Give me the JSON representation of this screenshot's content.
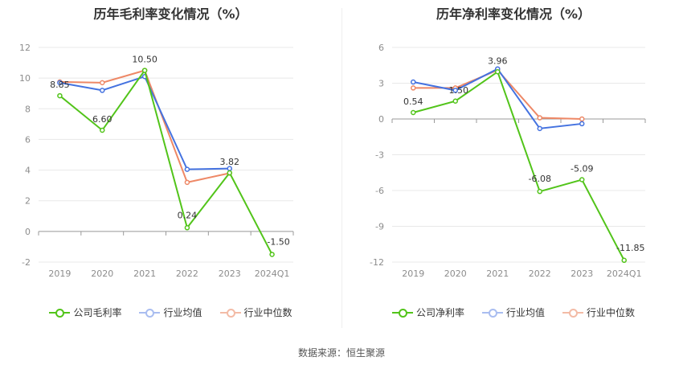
{
  "source_label": "数据来源：恒生聚源",
  "colors": {
    "company": "#52c41a",
    "industry_avg": "#4472e0",
    "industry_median": "#ee8866"
  },
  "chart_data": [
    {
      "type": "line",
      "title": "历年毛利率变化情况（%）",
      "categories": [
        "2019",
        "2020",
        "2021",
        "2022",
        "2023",
        "2024Q1"
      ],
      "ylim": [
        -2,
        12
      ],
      "yticks": [
        12,
        10,
        8,
        6,
        4,
        2,
        0,
        -2
      ],
      "ytick_labels": [
        "12",
        "10",
        "8",
        "6",
        "4",
        "2",
        "0",
        "-2"
      ],
      "grid": true,
      "legend_position": "bottom",
      "series": [
        {
          "key": "company",
          "name": "公司毛利率",
          "values": [
            8.85,
            6.6,
            10.5,
            0.24,
            3.82,
            -1.5
          ],
          "labels": [
            "8.85",
            "6.60",
            "10.50",
            "0.24",
            "3.82",
            "-1.50"
          ]
        },
        {
          "key": "industry_avg",
          "name": "行业均值",
          "values": [
            9.7,
            9.2,
            10.1,
            4.05,
            4.1,
            null
          ]
        },
        {
          "key": "industry_median",
          "name": "行业中位数",
          "values": [
            9.75,
            9.7,
            10.5,
            3.2,
            3.8,
            null
          ]
        }
      ]
    },
    {
      "type": "line",
      "title": "历年净利率变化情况（%）",
      "categories": [
        "2019",
        "2020",
        "2021",
        "2022",
        "2023",
        "2024Q1"
      ],
      "ylim": [
        -12,
        6
      ],
      "yticks": [
        6,
        3,
        0,
        -3,
        -6,
        -9,
        -12
      ],
      "ytick_labels": [
        "6",
        "3",
        "0",
        "-3",
        "-6",
        "-9",
        "-12"
      ],
      "grid": true,
      "legend_position": "bottom",
      "series": [
        {
          "key": "company",
          "name": "公司净利率",
          "values": [
            0.54,
            1.5,
            3.96,
            -6.08,
            -5.09,
            -11.85
          ],
          "labels": [
            "0.54",
            "1.50",
            "3.96",
            "-6.08",
            "-5.09",
            "-11.85"
          ]
        },
        {
          "key": "industry_avg",
          "name": "行业均值",
          "values": [
            3.1,
            2.4,
            4.2,
            -0.8,
            -0.4,
            null
          ]
        },
        {
          "key": "industry_median",
          "name": "行业中位数",
          "values": [
            2.6,
            2.6,
            4.1,
            0.1,
            0.0,
            null
          ]
        }
      ]
    }
  ]
}
